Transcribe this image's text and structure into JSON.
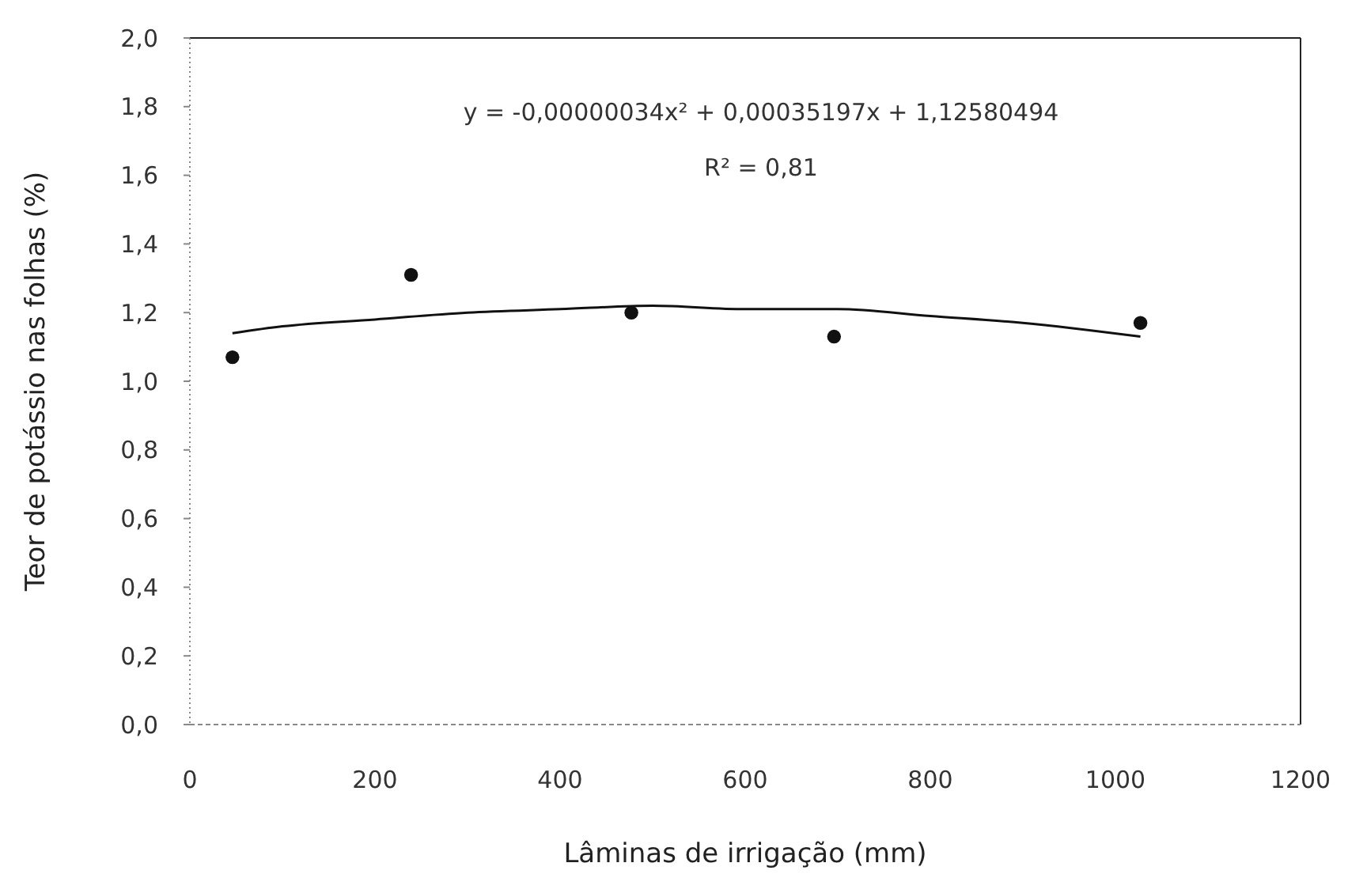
{
  "chart_data": {
    "type": "scatter",
    "xlabel": "Lâminas de irrigação (mm)",
    "ylabel": "Teor de potássio nas folhas (%)",
    "annotations": [
      "y = -0,00000034x² + 0,00035197x + 1,12580494",
      "R² = 0,81"
    ],
    "xlim": [
      0,
      1200
    ],
    "xticks": [
      0,
      200,
      400,
      600,
      800,
      1000,
      1200
    ],
    "ylim": [
      0,
      2
    ],
    "yticks": [
      {
        "value": 0,
        "label": "0,0"
      },
      {
        "value": 0.2,
        "label": "0,2"
      },
      {
        "value": 0.4,
        "label": "0,4"
      },
      {
        "value": 0.6,
        "label": "0,6"
      },
      {
        "value": 0.8,
        "label": "0,8"
      },
      {
        "value": 1,
        "label": "1,0"
      },
      {
        "value": 1.2,
        "label": "1,2"
      },
      {
        "value": 1.4,
        "label": "1,4"
      },
      {
        "value": 1.6,
        "label": "1,6"
      },
      {
        "value": 1.8,
        "label": "1,8"
      },
      {
        "value": 2,
        "label": "2,0"
      }
    ],
    "series": [
      {
        "marker": "circle",
        "color": "#111111",
        "x": [
          46,
          239,
          477,
          696,
          1027
        ],
        "values": [
          1.07,
          1.31,
          1.2,
          1.13,
          1.17
        ]
      },
      {
        "type": "line",
        "marker": "none",
        "color": "#111111",
        "x": [
          46,
          100,
          200,
          300,
          400,
          500,
          600,
          700,
          800,
          900,
          1027
        ],
        "values": [
          1.14,
          1.16,
          1.18,
          1.2,
          1.21,
          1.22,
          1.21,
          1.21,
          1.19,
          1.17,
          1.13
        ]
      }
    ]
  }
}
